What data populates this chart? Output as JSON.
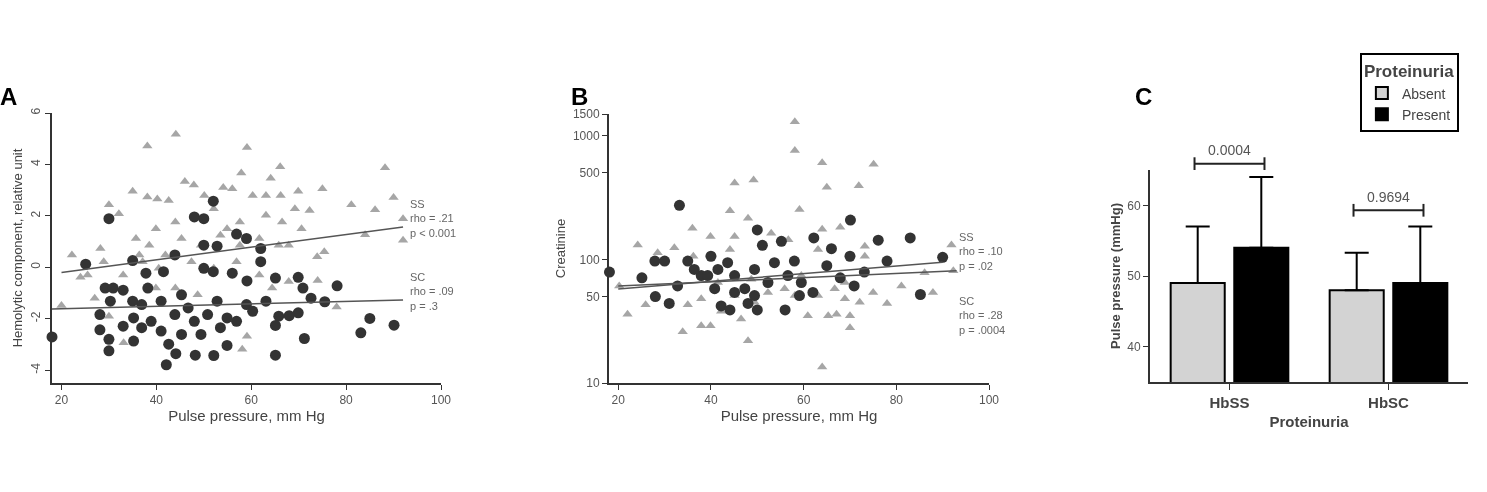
{
  "chart_data": [
    {
      "type": "scatter",
      "title": "A",
      "xlabel": "Pulse pressure, mm Hg",
      "ylabel": "Hemolytic component, relative unit",
      "xlim": [
        18,
        100
      ],
      "xticks": [
        20,
        40,
        60,
        80,
        100
      ],
      "ylim": [
        -4.5,
        6
      ],
      "yticks": [
        -4,
        -2,
        0,
        2,
        4,
        6
      ],
      "grid": false,
      "legend": false,
      "series": [
        {
          "color": "#a6a6a6",
          "marker": "triangle",
          "x": [
            38.1,
            44.1,
            59.1,
            88.2,
            66.1,
            57.9,
            64.1,
            46,
            47.9,
            35,
            54.1,
            56,
            75,
            69.9,
            90,
            81.1,
            86.1,
            30,
            32.1,
            22.2,
            24,
            20,
            27,
            92,
            84,
            92,
            73.9,
            75.4,
            72.3,
            74,
            78,
            59.1,
            58.1,
            33.1,
            30,
            37.1,
            38.1,
            40.2,
            42.6,
            50.1,
            60.3,
            63.1,
            66.2,
            39.9,
            44,
            52.1,
            54.9,
            57.6,
            63.1,
            66.5,
            69.2,
            70.6,
            35.7,
            38.5,
            41.9,
            45.3,
            49.4,
            53.5,
            57.6,
            61.7,
            65.8,
            67.9,
            36.4,
            40.5,
            47.4,
            52.1,
            56.9,
            61.7,
            64.4,
            67.9,
            44,
            48.7,
            39.9,
            33,
            28.9,
            28.2,
            25.5,
            65
          ],
          "values": [
            4.72,
            5.17,
            4.66,
            3.87,
            3.91,
            3.67,
            3.46,
            3.34,
            3.2,
            2.96,
            3.1,
            3.05,
            3.05,
            2.96,
            2.71,
            2.43,
            2.24,
            2.43,
            2.08,
            0.48,
            -0.39,
            -1.49,
            -1.2,
            1.05,
            1.27,
            1.89,
            0.41,
            0.6,
            2.21,
            -0.51,
            -1.54,
            -2.68,
            -3.19,
            -2.93,
            -1.9,
            0.22,
            2.73,
            2.66,
            2.6,
            2.79,
            2.79,
            2.79,
            2.79,
            1.5,
            1.76,
            2.28,
            1.5,
            1.76,
            2.02,
            1.76,
            2.28,
            1.5,
            1.12,
            0.86,
            0.48,
            1.12,
            0.86,
            1.25,
            0.86,
            1.12,
            0.86,
            0.86,
            0.48,
            -0.04,
            0.22,
            -0.04,
            0.22,
            -0.3,
            -0.81,
            -0.55,
            -0.81,
            -1.07,
            -0.81,
            -0.3,
            0.22,
            0.73,
            -0.3,
            -3.45
          ]
        },
        {
          "color": "#333333",
          "marker": "circle",
          "x": [
            18,
            25.1,
            30,
            52,
            48,
            50,
            56.9,
            59,
            62,
            62,
            50,
            52.8,
            43.9,
            35,
            37.8,
            41.5,
            50,
            52,
            56,
            59.1,
            65.1,
            69.9,
            70.9,
            78.1,
            72.6,
            75.5,
            69.9,
            68,
            65.8,
            65.1,
            85,
            90.1,
            83.1,
            71.2,
            65.1,
            52.1,
            48.2,
            42.1,
            44.1,
            54.9,
            35.2,
            30,
            30,
            28.1,
            28.1,
            29.2,
            30.9,
            33,
            33,
            35.2,
            36.9,
            36.9,
            38.9,
            41,
            41,
            43.9,
            45.3,
            46.7,
            48,
            49.4,
            50.8,
            52.8,
            53.5,
            54.9,
            56.9,
            59,
            60.3,
            63.1,
            42.6,
            45.3,
            38.2,
            35,
            30.3
          ],
          "values": [
            -2.71,
            0.12,
            1.89,
            2.57,
            1.96,
            1.89,
            1.29,
            1.12,
            0.73,
            0.22,
            0.86,
            0.82,
            0.48,
            0.26,
            -0.23,
            -0.17,
            -0.04,
            -0.17,
            -0.23,
            -0.53,
            -0.42,
            -0.39,
            -0.81,
            -0.72,
            -1.2,
            -1.34,
            -1.77,
            -1.88,
            -1.9,
            -2.26,
            -1.99,
            -2.25,
            -2.55,
            -2.77,
            -3.42,
            -3.43,
            -3.42,
            -3.79,
            -3.36,
            -3.04,
            -2.87,
            -3.25,
            -2.8,
            -2.43,
            -1.84,
            -0.81,
            -0.81,
            -0.89,
            -2.29,
            -1.97,
            -2.35,
            -1.45,
            -2.1,
            -2.48,
            -1.32,
            -1.84,
            -1.07,
            -1.58,
            -2.1,
            -2.61,
            -1.84,
            -1.32,
            -2.35,
            -1.97,
            -2.1,
            -1.45,
            -1.71,
            -1.32,
            -2.99,
            -2.61,
            -0.81,
            -1.32,
            -1.32
          ]
        },
        {
          "type": "line",
          "color": "#555555",
          "marker": "none",
          "x": [
            20,
            92
          ],
          "values": [
            -0.2,
            1.57
          ]
        },
        {
          "type": "line",
          "color": "#555555",
          "marker": "none",
          "x": [
            18,
            92
          ],
          "values": [
            -1.62,
            -1.27
          ]
        }
      ],
      "annotations": [
        "SS\nrho = .21\np < 0.001",
        "SC\nrho = .09\np = .3"
      ]
    },
    {
      "type": "scatter",
      "title": "B",
      "xlabel": "Pulse pressure, mm Hg",
      "ylabel": "Creatinine",
      "log": "y",
      "xlim": [
        18,
        100
      ],
      "xticks": [
        20,
        40,
        60,
        80,
        100
      ],
      "ylim": [
        10,
        1500
      ],
      "yticks": [
        10,
        50,
        100,
        500,
        1000,
        1500
      ],
      "grid": false,
      "legend": false,
      "series": [
        {
          "color": "#a6a6a6",
          "marker": "triangle",
          "x": [
            58.1,
            58.1,
            64,
            75.1,
            65,
            71.9,
            45.1,
            49.2,
            59.1,
            44.1,
            48,
            36,
            64,
            67.9,
            39.9,
            45.1,
            24.2,
            32.1,
            91.9,
            73.2,
            20.2,
            22,
            25.9,
            33.9,
            37.9,
            39.9,
            48,
            64,
            70,
            70,
            78,
            81.1,
            87.9,
            86.1,
            92.3,
            75,
            72.1,
            60.9,
            65.3,
            67.1,
            55.9,
            46.5,
            42.2,
            35,
            37.9,
            45.1,
            49.4,
            52.3,
            55.9,
            58.1,
            63.1,
            66.7,
            68.9,
            28.5,
            36.2,
            44.1,
            53,
            56.7,
            63.1,
            70.3,
            73.2,
            41.5,
            48.7,
            59.5,
            68.9
          ],
          "values": [
            1300,
            760,
            605,
            588,
            384,
            395,
            415,
            439,
            253,
            247,
            215,
            179,
            175,
            182,
            153,
            153,
            131,
            124,
            131,
            128,
            61,
            36,
            43,
            26,
            29,
            29,
            22,
            13.5,
            28,
            35,
            44,
            61,
            54,
            78,
            81,
            54,
            45,
            35,
            35,
            36,
            null,
            33,
            38,
            43,
            48,
            51,
            45,
            54,
            58,
            51,
            51,
            58,
            48,
            113,
            106,
            120,
            163,
            144,
            120,
            null,
            106,
            65,
            69,
            74,
            65
          ]
        },
        {
          "color": "#333333",
          "marker": "circle",
          "x": [
            18.1,
            33.2,
            70.1,
            50,
            76.1,
            83,
            90,
            78,
            85.2,
            62.2,
            55.2,
            51.1,
            66,
            40,
            70,
            25.1,
            28,
            31,
            27.9,
            30,
            32.8,
            35,
            42.2,
            44.1,
            48,
            50,
            56,
            59.1,
            62,
            67.9,
            70.9,
            73.1,
            65,
            37.9,
            40.8,
            45.1,
            47.3,
            49.4,
            52.3,
            53.7,
            56.6,
            43.6,
            36.4,
            59.5,
            58,
            39.3,
            45.1,
            49.4,
            41.5
          ],
          "values": [
            79,
            274,
            208,
            173,
            143,
            149,
            104,
            97,
            52,
            149,
            140,
            130,
            122,
            106,
            106,
            71,
            50,
            44,
            97,
            97,
            61,
            97,
            42,
            39,
            44,
            39,
            39,
            51,
            54,
            71,
            61,
            79,
            89,
            74,
            58,
            74,
            58,
            83,
            65,
            94,
            74,
            94,
            83,
            65,
            97,
            74,
            54,
            51,
            83
          ]
        },
        {
          "type": "line",
          "color": "#555555",
          "marker": "none",
          "x": [
            20,
            90
          ],
          "values": [
            57.7,
            95
          ]
        },
        {
          "type": "line",
          "color": "#555555",
          "marker": "none",
          "x": [
            20,
            93
          ],
          "values": [
            61,
            80.8
          ]
        }
      ],
      "annotations": [
        "SS\nrho = .10\np = .02",
        "SC\nrho = .28\np = .0004"
      ]
    },
    {
      "type": "bar",
      "title": "C",
      "xlabel": "Proteinuria",
      "ylabel": "Pulse pressure (mmHg)",
      "legend_title": "Proteinuria",
      "legend": "top right",
      "categories": [
        "HbSS",
        "HbSC"
      ],
      "ylim": [
        35,
        65
      ],
      "yticks": [
        40,
        50,
        60
      ],
      "grid": false,
      "series": [
        {
          "name": "Absent",
          "color": "#d3d3d3",
          "values": [
            49,
            48
          ],
          "errors": [
            [
              49,
              57
            ],
            [
              48,
              53.3
            ]
          ]
        },
        {
          "name": "Present",
          "color": "#000000",
          "values": [
            54,
            49
          ],
          "errors": [
            [
              54,
              64
            ],
            [
              49,
              57
            ]
          ]
        }
      ],
      "annotations": [
        "0.0004",
        "0.9694"
      ]
    }
  ]
}
